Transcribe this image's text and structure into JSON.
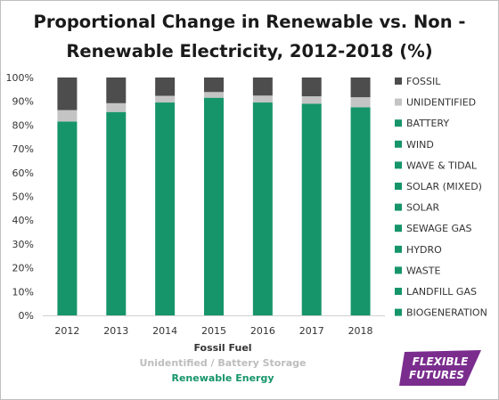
{
  "chart_data": {
    "type": "bar",
    "stacked": true,
    "title": "Proportional Change in Renewable vs. Non - Renewable Electricity, 2012-2018 (%)",
    "title_lines": [
      "Proportional Change in Renewable vs. Non -",
      "Renewable Electricity, 2012-2018 (%)"
    ],
    "categories": [
      "2012",
      "2013",
      "2014",
      "2015",
      "2016",
      "2017",
      "2018"
    ],
    "ylim": [
      0,
      100
    ],
    "yticks": [
      "0%",
      "10%",
      "20%",
      "30%",
      "40%",
      "50%",
      "60%",
      "70%",
      "80%",
      "90%",
      "100%"
    ],
    "grid": false,
    "legend_position": "right",
    "series": [
      {
        "name": "BIOGENERATION",
        "color": "#16956a",
        "values": [
          81.5,
          85.5,
          89.5,
          91.5,
          89.5,
          89,
          87.5
        ]
      },
      {
        "name": "LANDFILL GAS",
        "color": "#16956a",
        "values": [
          0,
          0,
          0,
          0,
          0,
          0,
          0
        ]
      },
      {
        "name": "WASTE",
        "color": "#16956a",
        "values": [
          0,
          0,
          0,
          0,
          0,
          0,
          0
        ]
      },
      {
        "name": "HYDRO",
        "color": "#16956a",
        "values": [
          0,
          0,
          0,
          0,
          0,
          0,
          0
        ]
      },
      {
        "name": "SEWAGE GAS",
        "color": "#16956a",
        "values": [
          0,
          0,
          0,
          0,
          0,
          0,
          0
        ]
      },
      {
        "name": "SOLAR",
        "color": "#16956a",
        "values": [
          0,
          0,
          0,
          0,
          0,
          0,
          0
        ]
      },
      {
        "name": "SOLAR (MIXED)",
        "color": "#16956a",
        "values": [
          0,
          0,
          0,
          0,
          0,
          0,
          0
        ]
      },
      {
        "name": "WAVE & TIDAL",
        "color": "#16956a",
        "values": [
          0,
          0,
          0,
          0,
          0,
          0,
          0
        ]
      },
      {
        "name": "WIND",
        "color": "#16956a",
        "values": [
          0,
          0,
          0,
          0,
          0,
          0,
          0
        ]
      },
      {
        "name": "BATTERY",
        "color": "#16956a",
        "values": [
          0,
          0,
          0,
          0,
          0,
          0,
          0
        ]
      },
      {
        "name": "UNIDENTIFIED",
        "color": "#c4c4c4",
        "values": [
          4.8,
          3.7,
          2.8,
          2.4,
          2.9,
          3.1,
          4.2
        ]
      },
      {
        "name": "FOSSIL",
        "color": "#4d4d4d",
        "values": [
          13.7,
          10.8,
          7.7,
          6.1,
          7.6,
          7.9,
          8.3
        ]
      }
    ],
    "captions": [
      {
        "text": "Fossil Fuel",
        "color": "#333333"
      },
      {
        "text": "Unidentified / Battery Storage",
        "color": "#bdbdbd"
      },
      {
        "text": "Renewable Energy",
        "color": "#16956a"
      }
    ]
  },
  "logo": {
    "line1": "FLEXIBLE",
    "line2": "FUTURES",
    "color": "#7b2d8e"
  }
}
